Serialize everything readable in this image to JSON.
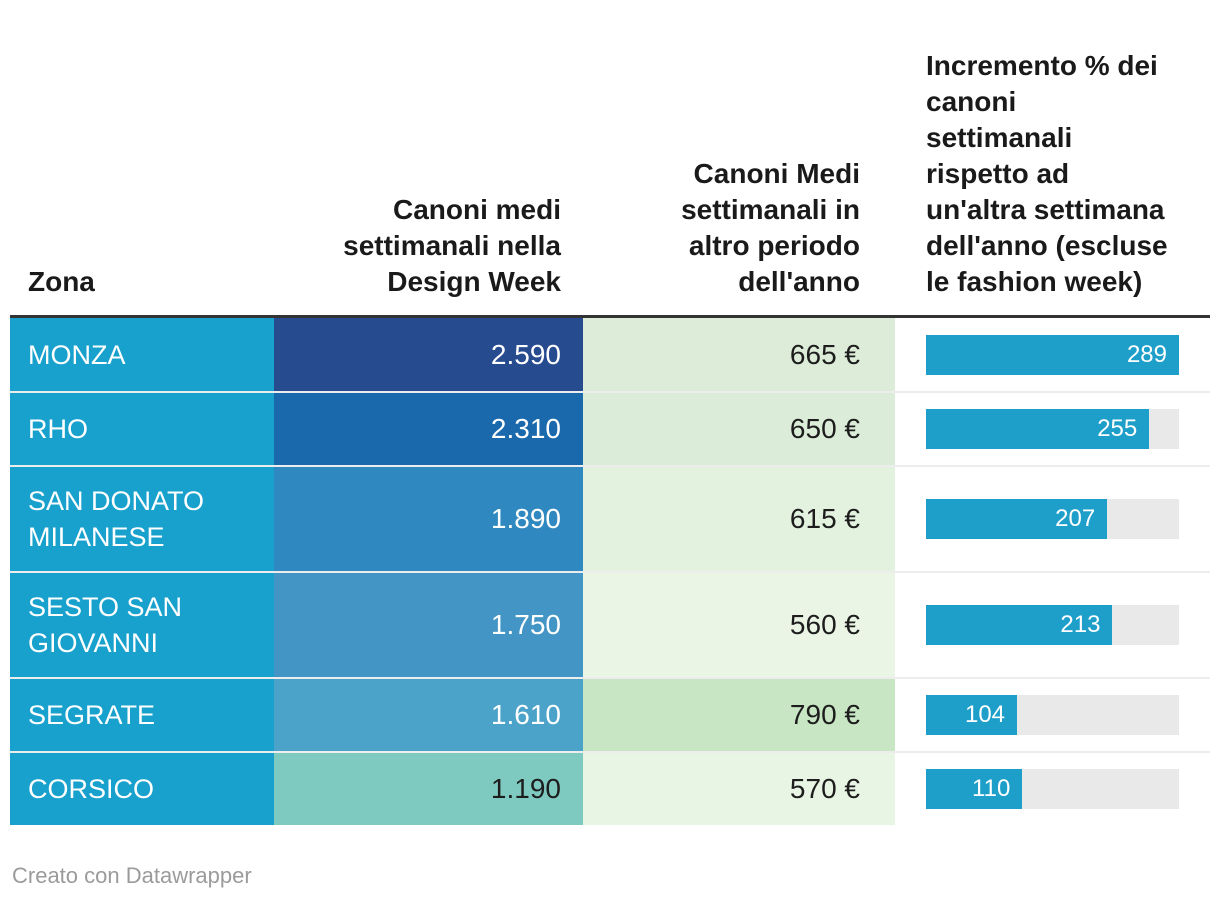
{
  "header": {
    "col1": "Zona",
    "col2": "Canoni medi\nsettimanali nella\nDesign Week",
    "col3": "Canoni Medi\nsettimanali in\naltro periodo\ndell'anno",
    "col4": "Incremento % dei\ncanoni\nsettimanali\nrispetto ad\nun'altra settimana\ndell'anno (escluse\nle fashion week)"
  },
  "palette": {
    "zona_bg": "#18a1cd",
    "header_border": "#333333",
    "row_separator": "rgba(0,0,0,0.07)",
    "text_dark": "#1d1d1d",
    "footer_gray": "#9b9b9b"
  },
  "bars": {
    "max": 289,
    "fill": "#1d9fca",
    "track": "#e9e9e9",
    "label_color": "#ffffff"
  },
  "rows": [
    {
      "zona": "MONZA",
      "design_week": "2.590",
      "design_week_bg": "#274b8f",
      "design_week_color": "#ffffff",
      "altro": "665 €",
      "altro_bg": "#dcecd8",
      "incremento": 289
    },
    {
      "zona": "RHO",
      "design_week": "2.310",
      "design_week_bg": "#1a69ad",
      "design_week_color": "#ffffff",
      "altro": "650 €",
      "altro_bg": "#dbecd8",
      "incremento": 255
    },
    {
      "zona": "SAN DONATO MILANESE",
      "design_week": "1.890",
      "design_week_bg": "#2f89c0",
      "design_week_color": "#ffffff",
      "altro": "615 €",
      "altro_bg": "#e3f1df",
      "incremento": 207
    },
    {
      "zona": "SESTO SAN GIOVANNI",
      "design_week": "1.750",
      "design_week_bg": "#4295c4",
      "design_week_color": "#ffffff",
      "altro": "560 €",
      "altro_bg": "#eaf5e6",
      "incremento": 213
    },
    {
      "zona": "SEGRATE",
      "design_week": "1.610",
      "design_week_bg": "#4ba3c9",
      "design_week_color": "#ffffff",
      "altro": "790 €",
      "altro_bg": "#c8e6c4",
      "incremento": 104
    },
    {
      "zona": "CORSICO",
      "design_week": "1.190",
      "design_week_bg": "#7ecac1",
      "design_week_color": "#1d1d1d",
      "altro": "570 €",
      "altro_bg": "#e8f4e4",
      "incremento": 110
    }
  ],
  "footer": "Creato con Datawrapper",
  "chart_data": {
    "type": "table",
    "title": "",
    "columns": [
      "Zona",
      "Canoni medi settimanali nella Design Week",
      "Canoni Medi settimanali in altro periodo dell'anno",
      "Incremento % dei canoni settimanali rispetto ad un'altra settimana dell'anno (escluse le fashion week)"
    ],
    "rows": [
      [
        "MONZA",
        2590,
        665,
        289
      ],
      [
        "RHO",
        2310,
        650,
        255
      ],
      [
        "SAN DONATO MILANESE",
        1890,
        615,
        207
      ],
      [
        "SESTO SAN GIOVANNI",
        1750,
        560,
        213
      ],
      [
        "SEGRATE",
        1610,
        790,
        104
      ],
      [
        "CORSICO",
        1190,
        570,
        110
      ]
    ],
    "column_styles": [
      "solid cyan background",
      "heatmap blue: darker = higher value",
      "heatmap green: darker = higher value",
      "horizontal bar chart, scale 0-289"
    ],
    "bar_column_index": 3,
    "bar_max": 289,
    "layout_hints": {
      "header_alignment": [
        "left",
        "right",
        "right",
        "left"
      ],
      "footer": "Creato con Datawrapper"
    }
  }
}
